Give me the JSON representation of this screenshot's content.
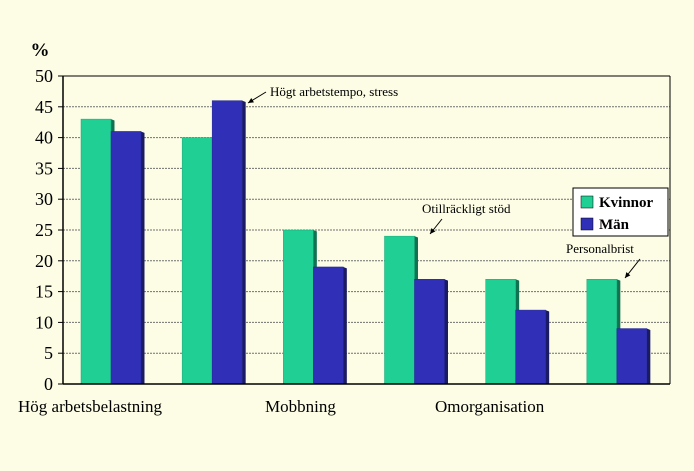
{
  "chart_data": {
    "type": "bar",
    "unit_label": "%",
    "ylim": [
      0,
      50
    ],
    "yticks": [
      0,
      5,
      10,
      15,
      20,
      25,
      30,
      35,
      40,
      45,
      50
    ],
    "grid": true,
    "legend_position": "right",
    "categories": [
      "Hög arbetsbelastning",
      "Högt arbetstempo, stress",
      "Mobbning",
      "Otillräckligt stöd",
      "Omorganisation",
      "Personalbrist"
    ],
    "x_tick_labels": [
      "Hög arbetsbelastning",
      "Mobbning",
      "Omorganisation"
    ],
    "series": [
      {
        "name": "Kvinnor",
        "color": "#1fcf94",
        "values": [
          43,
          40,
          25,
          24,
          17,
          17
        ]
      },
      {
        "name": "Män",
        "color": "#2f2fb8",
        "values": [
          41,
          46,
          19,
          17,
          12,
          9
        ]
      }
    ],
    "annotations": [
      {
        "text": "Högt arbetstempo, stress",
        "category_index": 1
      },
      {
        "text": "Otillräckligt stöd",
        "category_index": 3
      },
      {
        "text": "Personalbrist",
        "category_index": 5
      }
    ]
  }
}
